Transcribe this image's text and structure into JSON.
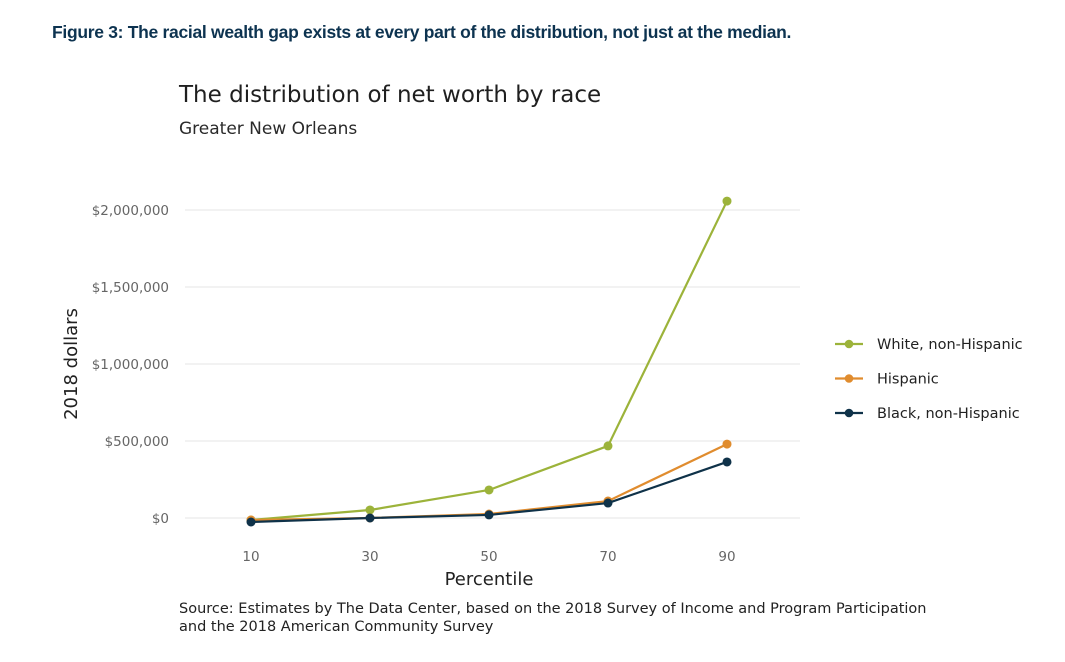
{
  "figure_caption": "Figure 3: The racial wealth gap exists at every part of the distribution, not just at the median.",
  "source": {
    "line1": "Source: Estimates by The Data Center, based on the 2018 Survey of Income and Program Participation",
    "line2": "and the 2018 American Community Survey"
  },
  "chart_data": {
    "type": "line",
    "title": "The distribution of net worth by race",
    "subtitle": "Greater New Orleans",
    "xlabel": "Percentile",
    "ylabel": "2018 dollars",
    "x": [
      10,
      30,
      50,
      70,
      90
    ],
    "x_tick_labels": [
      "10",
      "30",
      "50",
      "70",
      "90"
    ],
    "xlim": [
      3,
      103
    ],
    "ylim": [
      -100000,
      2050000
    ],
    "y_ticks": [
      0,
      500000,
      1000000,
      1500000,
      2000000
    ],
    "y_tick_labels": [
      "$0",
      "$500,000",
      "$1,000,000",
      "$1,500,000",
      "$2,000,000"
    ],
    "grid": "horizontal",
    "legend_position": "right",
    "series": [
      {
        "name": "White, non-Hispanic",
        "color": "#9cb33a",
        "values": [
          -13000,
          52000,
          182000,
          468000,
          2058000
        ]
      },
      {
        "name": "Hispanic",
        "color": "#e08c2e",
        "values": [
          -13000,
          0,
          26000,
          110000,
          480000
        ]
      },
      {
        "name": "Black, non-Hispanic",
        "color": "#0f3249",
        "values": [
          -26000,
          0,
          20000,
          97000,
          364000
        ]
      }
    ]
  }
}
